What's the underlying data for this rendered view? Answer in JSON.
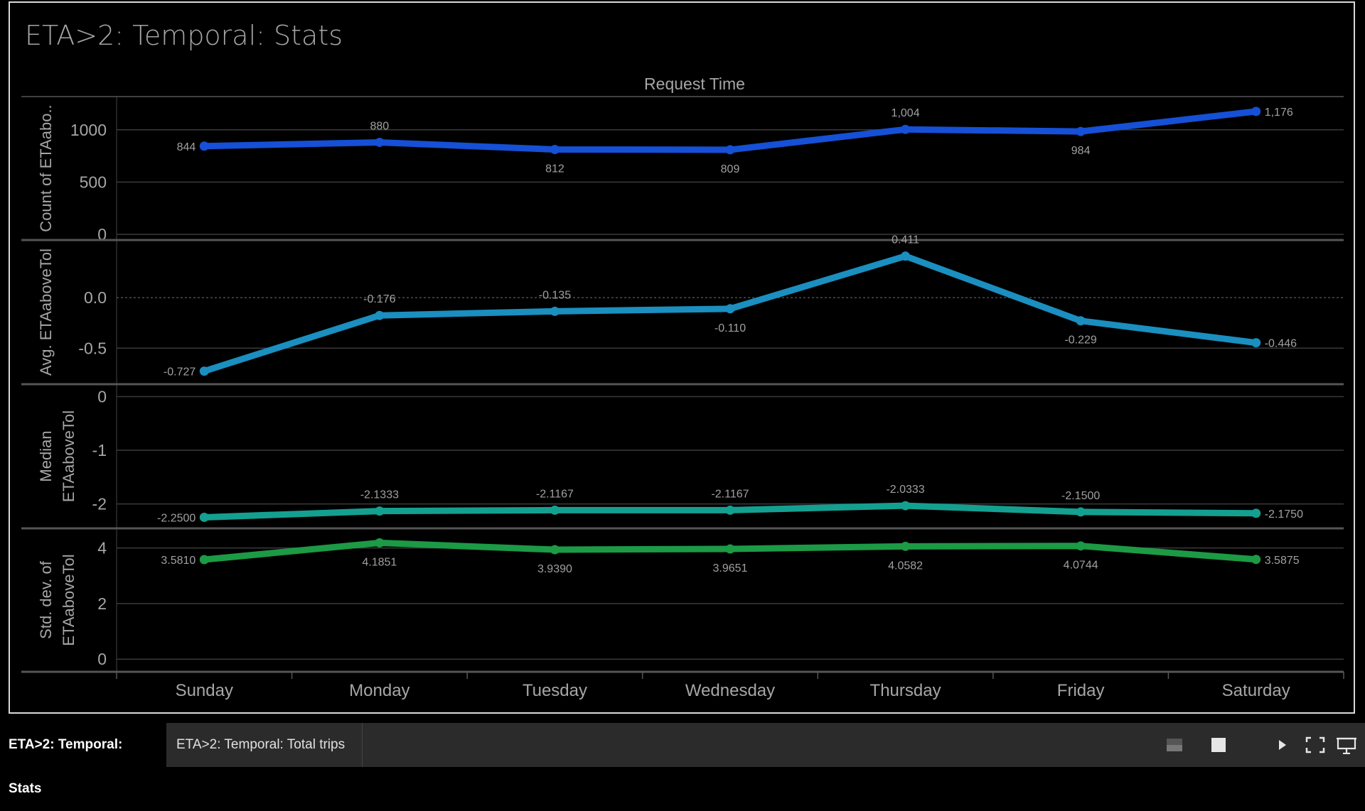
{
  "sheet": {
    "title": "ETA>2: Temporal: Stats"
  },
  "tabs": [
    {
      "label": "ETA>2: Temporal: Stats",
      "active": true
    },
    {
      "label": "ETA>2: Temporal: Total trips",
      "active": false
    }
  ],
  "controls": [
    "layout-icon",
    "stop-icon",
    "play-icon",
    "fullscreen-icon",
    "present-icon"
  ],
  "colors": {
    "count": "#1550d6",
    "avg": "#1a8fc0",
    "median": "#14a090",
    "stddev": "#1c9a45",
    "axis_text": "#a6a6a6",
    "label_text": "#a0a0a0"
  },
  "chart_data": {
    "type": "line",
    "title": "Request Time",
    "categories": [
      "Sunday",
      "Monday",
      "Tuesday",
      "Wednesday",
      "Thursday",
      "Friday",
      "Saturday"
    ],
    "panels": [
      {
        "ylabel": "Count of ETAabo..",
        "ylim": [
          0,
          1250
        ],
        "ticks": [
          0,
          500,
          1000
        ],
        "tick_labels": [
          "0",
          "500",
          "1000"
        ],
        "values": [
          844,
          880,
          812,
          809,
          1004,
          984,
          1176
        ],
        "labels": [
          "844",
          "880",
          "812",
          "809",
          "1,004",
          "984",
          "1,176"
        ],
        "label_pos": [
          "left",
          "above",
          "below",
          "below",
          "above",
          "below",
          "right"
        ]
      },
      {
        "ylabel": "Avg. ETAaboveTol",
        "ylim": [
          -0.8,
          0.5
        ],
        "ticks": [
          -0.5,
          0.0
        ],
        "tick_labels": [
          "-0.5",
          "0.0"
        ],
        "zero_line": true,
        "values": [
          -0.727,
          -0.176,
          -0.135,
          -0.11,
          0.411,
          -0.229,
          -0.446
        ],
        "labels": [
          "-0.727",
          "-0.176",
          "-0.135",
          "-0.110",
          "0.411",
          "-0.229",
          "-0.446"
        ],
        "label_pos": [
          "left",
          "above",
          "above",
          "below",
          "above",
          "below",
          "right"
        ]
      },
      {
        "ylabel": "Median ETAaboveTol",
        "ylim": [
          -2.35,
          0.1
        ],
        "ticks": [
          -2,
          -1,
          0
        ],
        "tick_labels": [
          "-2",
          "-1",
          "0"
        ],
        "values": [
          -2.25,
          -2.1333,
          -2.1167,
          -2.1167,
          -2.0333,
          -2.15,
          -2.175
        ],
        "labels": [
          "-2.2500",
          "-2.1333",
          "-2.1167",
          "-2.1167",
          "-2.0333",
          "-2.1500",
          "-2.1750"
        ],
        "label_pos": [
          "left",
          "above",
          "above",
          "above",
          "above",
          "above",
          "right"
        ]
      },
      {
        "ylabel": "Std. dev. of ETAaboveTol",
        "ylim": [
          -0.25,
          4.45
        ],
        "ticks": [
          0,
          2,
          4
        ],
        "tick_labels": [
          "0",
          "2",
          "4"
        ],
        "values": [
          3.581,
          4.1851,
          3.939,
          3.9651,
          4.0582,
          4.0744,
          3.5875
        ],
        "labels": [
          "3.5810",
          "4.1851",
          "3.9390",
          "3.9651",
          "4.0582",
          "4.0744",
          "3.5875"
        ],
        "label_pos": [
          "left",
          "below",
          "below",
          "below",
          "below",
          "below",
          "right"
        ]
      }
    ]
  }
}
